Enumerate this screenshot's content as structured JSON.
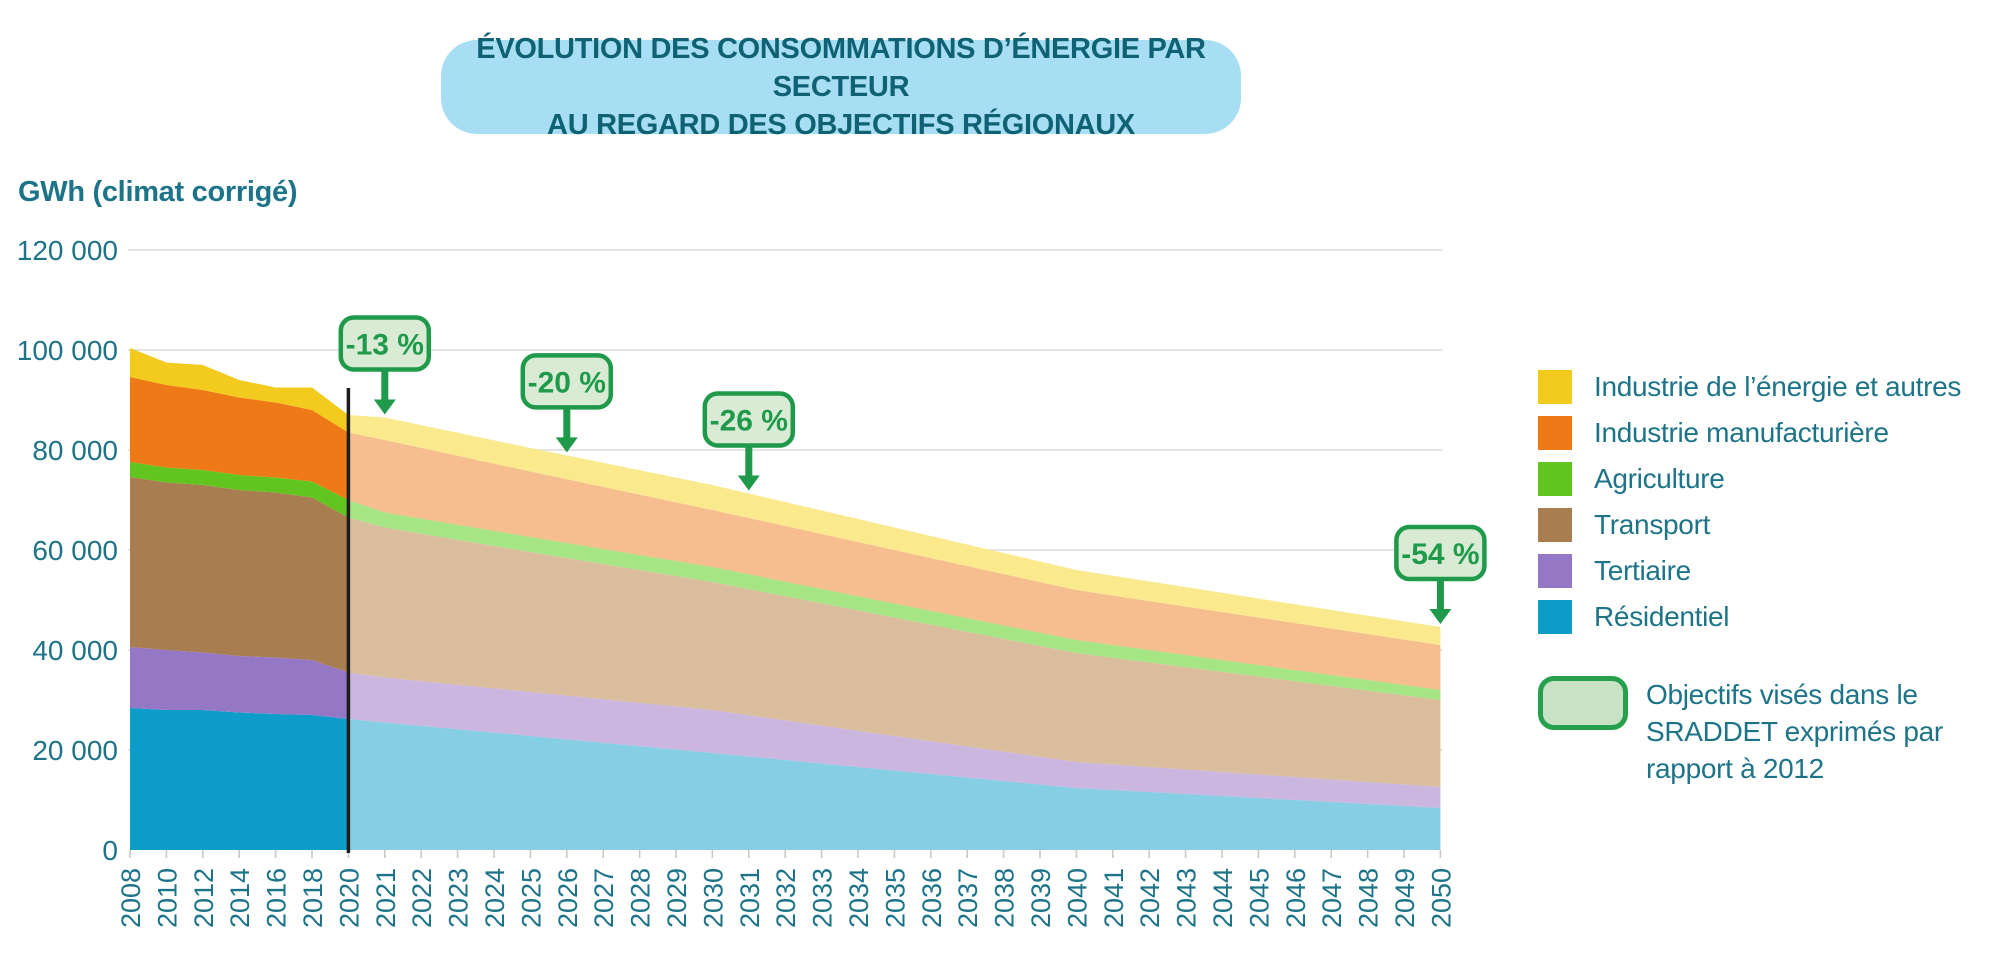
{
  "title": {
    "line1": "ÉVOLUTION DES CONSOMMATIONS D’ÉNERGIE PAR SECTEUR",
    "line2": "AU REGARD DES OBJECTIFS RÉGIONAUX"
  },
  "y_axis_title": "GWh (climat corrigé)",
  "legend": {
    "items": [
      {
        "label": "Industrie de l’énergie et autres",
        "color": "#f3ca1e"
      },
      {
        "label": "Industrie manufacturière",
        "color": "#ee7a17"
      },
      {
        "label": "Agriculture",
        "color": "#62c41f"
      },
      {
        "label": "Transport",
        "color": "#a87d4f"
      },
      {
        "label": "Tertiaire",
        "color": "#9478c5"
      },
      {
        "label": "Résidentiel",
        "color": "#0d9dca"
      }
    ]
  },
  "note": {
    "text": "Objectifs visés dans le SRADDET exprimés par rapport à 2012"
  },
  "chart_data": {
    "type": "area",
    "stacked": true,
    "title": "Évolution des consommations d’énergie par secteur au regard des objectifs régionaux",
    "ylabel": "GWh (climat corrigé)",
    "ylim": [
      0,
      120000
    ],
    "grid": true,
    "legend_position": "right",
    "y_tick_values": [
      0,
      20000,
      40000,
      60000,
      80000,
      100000,
      120000
    ],
    "y_tick_labels": [
      "0",
      "20 000",
      "40 000",
      "60 000",
      "80 000",
      "100 000",
      "120 000"
    ],
    "x_tick_years": [
      2008,
      2010,
      2012,
      2014,
      2016,
      2018,
      2020,
      2021,
      2022,
      2023,
      2024,
      2025,
      2026,
      2027,
      2028,
      2029,
      2030,
      2031,
      2032,
      2033,
      2034,
      2035,
      2036,
      2037,
      2038,
      2039,
      2040,
      2041,
      2042,
      2043,
      2044,
      2045,
      2046,
      2047,
      2048,
      2049,
      2050
    ],
    "historical_years": [
      2008,
      2010,
      2012,
      2014,
      2016,
      2018,
      2020
    ],
    "projection_years": [
      2020,
      2021,
      2025,
      2030,
      2035,
      2040,
      2045,
      2050
    ],
    "reference_line_year": 2020,
    "series": [
      {
        "name": "Résidentiel",
        "color": "#0d9dca",
        "color_projection": "#85cee3",
        "values_historical": [
          28400,
          28000,
          28000,
          27500,
          27200,
          27000,
          26200
        ],
        "values_projection": [
          26200,
          25500,
          22800,
          19400,
          15900,
          12400,
          10400,
          8400
        ]
      },
      {
        "name": "Tertiaire",
        "color": "#9478c5",
        "color_projection": "#cab6df",
        "values_historical": [
          12200,
          12000,
          11500,
          11300,
          11300,
          11000,
          9300
        ],
        "values_projection": [
          9300,
          9000,
          8800,
          8600,
          6900,
          5200,
          4700,
          4200
        ]
      },
      {
        "name": "Transport",
        "color": "#a87d4f",
        "color_projection": "#d9bd9d",
        "values_historical": [
          34000,
          33500,
          33500,
          33200,
          33000,
          32500,
          31000
        ],
        "values_projection": [
          31000,
          30000,
          28000,
          25600,
          23700,
          21800,
          19600,
          17400
        ]
      },
      {
        "name": "Agriculture",
        "color": "#62c41f",
        "color_projection": "#a6e584",
        "values_historical": [
          3000,
          3000,
          3000,
          3000,
          3000,
          3200,
          3500
        ],
        "values_projection": [
          3500,
          3000,
          3000,
          3000,
          2800,
          2600,
          2300,
          2000
        ]
      },
      {
        "name": "Industrie manufacturière",
        "color": "#ee7a17",
        "color_projection": "#f6bd8e",
        "values_historical": [
          17000,
          16500,
          16000,
          15500,
          15000,
          14300,
          13500
        ],
        "values_projection": [
          13500,
          14500,
          13100,
          11400,
          10700,
          10000,
          9500,
          9000
        ]
      },
      {
        "name": "Industrie de l’énergie et autres",
        "color": "#f3ca1e",
        "color_projection": "#fbe98e",
        "values_historical": [
          5800,
          4500,
          5000,
          3500,
          3000,
          4500,
          3500
        ],
        "values_projection": [
          3500,
          4500,
          4700,
          5000,
          4500,
          4000,
          3800,
          3600
        ]
      }
    ],
    "annotations": [
      {
        "label": "-13 %",
        "year": 2021
      },
      {
        "label": "-20 %",
        "year": 2026
      },
      {
        "label": "-26 %",
        "year": 2031
      },
      {
        "label": "-54 %",
        "year": 2050
      }
    ],
    "annotation_colors": {
      "border": "#1f9a4b",
      "fill": "#d9ead5",
      "text": "#1f9a4b"
    }
  }
}
